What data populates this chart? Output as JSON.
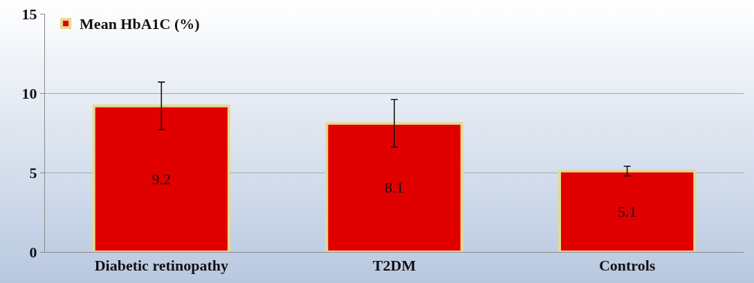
{
  "chart_data": {
    "type": "bar",
    "categories": [
      "Diabetic retinopathy",
      "T2DM",
      "Controls"
    ],
    "series": [
      {
        "name": "Mean HbA1C (%)",
        "color": "#e00000",
        "values": [
          9.2,
          8.1,
          5.1
        ],
        "errors": [
          1.5,
          1.5,
          0.3
        ]
      }
    ],
    "ylim": [
      0,
      15
    ],
    "yticks": [
      0,
      5,
      10,
      15
    ],
    "grid": "y",
    "legend": "top left",
    "data_labels": true
  }
}
